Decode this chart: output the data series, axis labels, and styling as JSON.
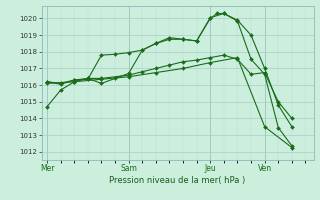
{
  "background_color": "#cceedd",
  "grid_color_major": "#aacccc",
  "grid_color_minor": "#bbdddd",
  "line_color": "#1a6b1a",
  "title": "Pression niveau de la mer( hPa )",
  "ylim": [
    1011.5,
    1020.75
  ],
  "yticks": [
    1012,
    1013,
    1014,
    1015,
    1016,
    1017,
    1018,
    1019,
    1020
  ],
  "xtick_labels": [
    "Mer",
    "Sam",
    "Jeu",
    "Ven"
  ],
  "xtick_positions": [
    0,
    3,
    6,
    8
  ],
  "xlim": [
    -0.2,
    9.8
  ],
  "line1_x": [
    0,
    0.5,
    1,
    1.5,
    2,
    2.5,
    3,
    3.5,
    4,
    4.5,
    5,
    5.5,
    6,
    6.25,
    6.5,
    7,
    7.5,
    8,
    8.5,
    9
  ],
  "line1_y": [
    1014.7,
    1015.7,
    1016.2,
    1016.4,
    1016.1,
    1016.4,
    1016.7,
    1018.1,
    1018.5,
    1018.85,
    1018.75,
    1018.65,
    1020.0,
    1020.3,
    1020.3,
    1019.9,
    1019.0,
    1017.0,
    1014.8,
    1013.5
  ],
  "line2_x": [
    0,
    0.5,
    1,
    1.5,
    2,
    3,
    3.5,
    4,
    4.5,
    5,
    5.5,
    6,
    6.5,
    7,
    7.5,
    8,
    8.5,
    9
  ],
  "line2_y": [
    1016.2,
    1016.1,
    1016.3,
    1016.4,
    1016.4,
    1016.6,
    1016.8,
    1017.0,
    1017.2,
    1017.4,
    1017.5,
    1017.65,
    1017.8,
    1017.55,
    1016.65,
    1016.75,
    1015.0,
    1014.0
  ],
  "line3_x": [
    0,
    0.5,
    1,
    1.5,
    2,
    2.5,
    3,
    3.5,
    4,
    4.5,
    5,
    5.5,
    6,
    6.5,
    7,
    7.5,
    8,
    8.5,
    9
  ],
  "line3_y": [
    1016.2,
    1016.05,
    1016.3,
    1016.35,
    1017.8,
    1017.85,
    1017.95,
    1018.1,
    1018.5,
    1018.75,
    1018.75,
    1018.65,
    1020.05,
    1020.3,
    1019.85,
    1017.55,
    1016.65,
    1013.45,
    1012.35
  ],
  "line4_x": [
    0,
    1,
    2,
    3,
    4,
    5,
    6,
    7,
    8,
    9
  ],
  "line4_y": [
    1016.1,
    1016.2,
    1016.35,
    1016.5,
    1016.75,
    1017.0,
    1017.35,
    1017.65,
    1013.5,
    1012.25
  ]
}
